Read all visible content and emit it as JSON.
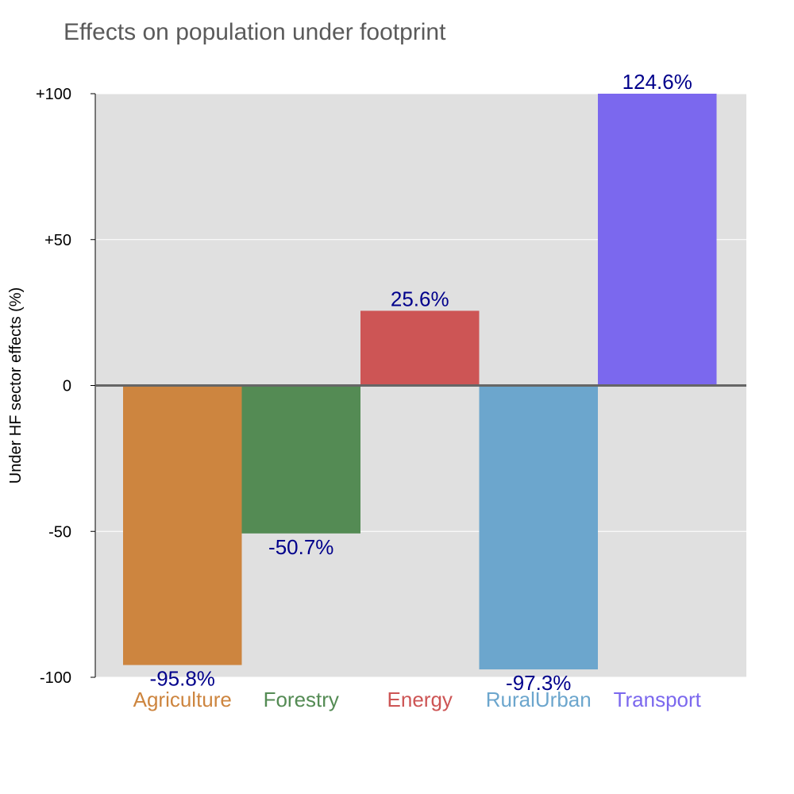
{
  "chart_data": {
    "type": "bar",
    "title": "Effects on population under footprint",
    "ylabel": "Under HF sector effects (%)",
    "xlabel": "",
    "ylim": [
      -100,
      100
    ],
    "yticks": [
      {
        "value": 100,
        "label": "+100"
      },
      {
        "value": 50,
        "label": "+50"
      },
      {
        "value": 0,
        "label": "0"
      },
      {
        "value": -50,
        "label": "-50"
      },
      {
        "value": -100,
        "label": "-100"
      }
    ],
    "categories": [
      "Agriculture",
      "Forestry",
      "Energy",
      "RuralUrban",
      "Transport"
    ],
    "values": [
      -95.8,
      -50.7,
      25.6,
      -97.3,
      124.6
    ],
    "data_labels": [
      "-95.8%",
      "-50.7%",
      "25.6%",
      "-97.3%",
      "124.6%"
    ],
    "colors": [
      "#cd853f",
      "#548b54",
      "#cd5555",
      "#6ca6cd",
      "#7b68ee"
    ],
    "label_color": "#00008b",
    "panel_background": "#e0e0e0",
    "grid": true,
    "legend": "none"
  }
}
